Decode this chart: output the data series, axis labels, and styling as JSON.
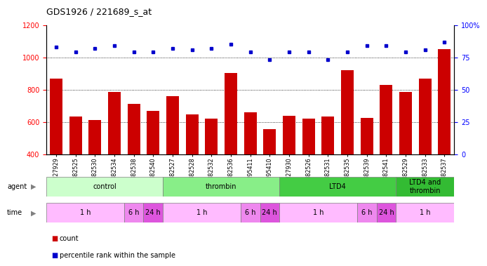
{
  "title": "GDS1926 / 221689_s_at",
  "samples": [
    "GSM27929",
    "GSM82525",
    "GSM82530",
    "GSM82534",
    "GSM82538",
    "GSM82540",
    "GSM82527",
    "GSM82528",
    "GSM82532",
    "GSM82536",
    "GSM95411",
    "GSM95410",
    "GSM27930",
    "GSM82526",
    "GSM82531",
    "GSM82535",
    "GSM82539",
    "GSM82541",
    "GSM82529",
    "GSM82533",
    "GSM82537"
  ],
  "bar_values": [
    870,
    635,
    610,
    785,
    710,
    670,
    760,
    645,
    620,
    905,
    660,
    555,
    640,
    620,
    635,
    920,
    625,
    830,
    785,
    870,
    1050
  ],
  "dot_values": [
    83,
    79,
    82,
    84,
    79,
    79,
    82,
    81,
    82,
    85,
    79,
    73,
    79,
    79,
    73,
    79,
    84,
    84,
    79,
    81,
    87
  ],
  "bar_color": "#cc0000",
  "dot_color": "#0000cc",
  "ylim_left": [
    400,
    1200
  ],
  "ylim_right": [
    0,
    100
  ],
  "yticks_left": [
    400,
    600,
    800,
    1000,
    1200
  ],
  "yticks_right": [
    0,
    25,
    50,
    75,
    100
  ],
  "yticklabels_right": [
    "0",
    "25",
    "50",
    "75",
    "100%"
  ],
  "grid_values": [
    600,
    800,
    1000
  ],
  "agent_groups": [
    {
      "label": "control",
      "start": 0,
      "end": 6,
      "color": "#ccffcc"
    },
    {
      "label": "thrombin",
      "start": 6,
      "end": 12,
      "color": "#88ee88"
    },
    {
      "label": "LTD4",
      "start": 12,
      "end": 18,
      "color": "#44cc44"
    },
    {
      "label": "LTD4 and\nthrombin",
      "start": 18,
      "end": 21,
      "color": "#33bb33"
    }
  ],
  "time_groups": [
    {
      "label": "1 h",
      "start": 0,
      "end": 4,
      "color": "#ffbbff"
    },
    {
      "label": "6 h",
      "start": 4,
      "end": 5,
      "color": "#ee88ee"
    },
    {
      "label": "24 h",
      "start": 5,
      "end": 6,
      "color": "#dd55dd"
    },
    {
      "label": "1 h",
      "start": 6,
      "end": 10,
      "color": "#ffbbff"
    },
    {
      "label": "6 h",
      "start": 10,
      "end": 11,
      "color": "#ee88ee"
    },
    {
      "label": "24 h",
      "start": 11,
      "end": 12,
      "color": "#dd55dd"
    },
    {
      "label": "1 h",
      "start": 12,
      "end": 16,
      "color": "#ffbbff"
    },
    {
      "label": "6 h",
      "start": 16,
      "end": 17,
      "color": "#ee88ee"
    },
    {
      "label": "24 h",
      "start": 17,
      "end": 18,
      "color": "#dd55dd"
    },
    {
      "label": "1 h",
      "start": 18,
      "end": 21,
      "color": "#ffbbff"
    }
  ],
  "legend_count_color": "#cc0000",
  "legend_dot_color": "#0000cc",
  "bg_color": "#ffffff",
  "label_fontsize": 7,
  "tick_fontsize": 6.5,
  "xtick_fontsize": 5.8,
  "row_fontsize": 7
}
